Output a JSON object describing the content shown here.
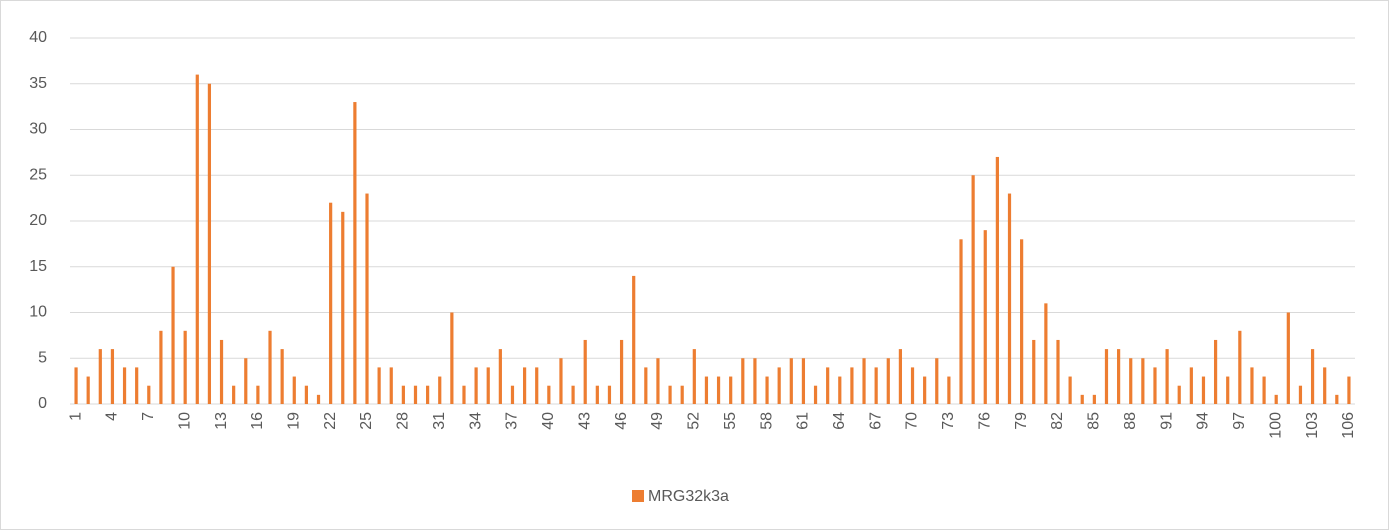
{
  "chart_data": {
    "type": "bar",
    "categories": [
      "1",
      null,
      null,
      "4",
      null,
      null,
      "7",
      null,
      null,
      "10",
      null,
      null,
      "13",
      null,
      null,
      "16",
      null,
      null,
      "19",
      null,
      null,
      "22",
      null,
      null,
      "25",
      null,
      null,
      "28",
      null,
      null,
      "31",
      null,
      null,
      "34",
      null,
      null,
      "37",
      null,
      null,
      "40",
      null,
      null,
      "43",
      null,
      null,
      "46",
      null,
      null,
      "49",
      null,
      null,
      "52",
      null,
      null,
      "55",
      null,
      null,
      "58",
      null,
      null,
      "61",
      null,
      null,
      "64",
      null,
      null,
      "67",
      null,
      null,
      "70",
      null,
      null,
      "73",
      null,
      null,
      "76",
      null,
      null,
      "79",
      null,
      null,
      "82",
      null,
      null,
      "85",
      null,
      null,
      "88",
      null,
      null,
      "91",
      null,
      null,
      "94",
      null,
      null,
      "97",
      null,
      null,
      "100",
      null,
      null,
      "103",
      null,
      null,
      "106"
    ],
    "series": [
      {
        "name": "MRG32k3a",
        "color": "#ed7d31",
        "values": [
          4,
          3,
          6,
          6,
          4,
          4,
          2,
          8,
          15,
          8,
          36,
          35,
          7,
          2,
          5,
          2,
          8,
          6,
          3,
          2,
          1,
          22,
          21,
          33,
          23,
          4,
          4,
          2,
          2,
          2,
          3,
          10,
          2,
          4,
          4,
          6,
          2,
          4,
          4,
          2,
          5,
          2,
          7,
          2,
          2,
          7,
          14,
          4,
          5,
          2,
          2,
          6,
          3,
          3,
          3,
          5,
          5,
          3,
          4,
          5,
          5,
          2,
          4,
          3,
          4,
          5,
          4,
          5,
          6,
          4,
          3,
          5,
          3,
          18,
          25,
          19,
          27,
          23,
          18,
          7,
          11,
          7,
          3,
          1,
          1,
          6,
          6,
          5,
          5,
          4,
          6,
          2,
          4,
          3,
          7,
          3,
          8,
          4,
          3,
          1,
          10,
          2,
          6,
          4,
          1,
          3
        ]
      }
    ],
    "ylim": [
      0,
      40
    ],
    "yticks": [
      0,
      5,
      10,
      15,
      20,
      25,
      30,
      35,
      40
    ],
    "grid": true,
    "legend": "bottom"
  }
}
